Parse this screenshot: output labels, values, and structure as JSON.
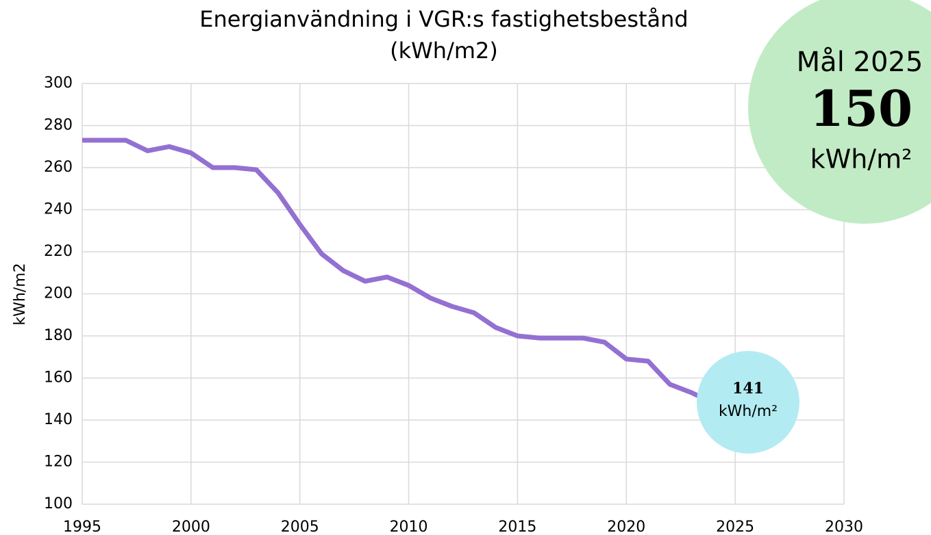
{
  "chart_data": {
    "type": "line",
    "title": [
      "Energianvändning i VGR:s fastighetsbestånd",
      "(kWh/m2)"
    ],
    "y_label": "kWh/m2",
    "x": [
      1995,
      1996,
      1997,
      1998,
      1999,
      2000,
      2001,
      2002,
      2003,
      2004,
      2005,
      2006,
      2007,
      2008,
      2009,
      2010,
      2011,
      2012,
      2013,
      2014,
      2015,
      2016,
      2017,
      2018,
      2019,
      2020,
      2021,
      2022,
      2023,
      2024
    ],
    "series": [
      {
        "name": "Energianvändning",
        "color": "#9370d2",
        "values": [
          273,
          273,
          273,
          268,
          270,
          267,
          260,
          260,
          259,
          248,
          233,
          219,
          211,
          206,
          208,
          204,
          198,
          194,
          191,
          184,
          180,
          179,
          179,
          179,
          177,
          169,
          168,
          157,
          153,
          148
        ]
      }
    ],
    "xlim": [
      1995,
      2030
    ],
    "xticks": [
      1995,
      2000,
      2005,
      2010,
      2015,
      2020,
      2025,
      2030
    ],
    "ylim": [
      100,
      300
    ],
    "yticks": [
      100,
      120,
      140,
      160,
      180,
      200,
      220,
      240,
      260,
      280,
      300
    ],
    "grid": true,
    "annotations": {
      "goal": {
        "lines": [
          "Mål 2025",
          "150",
          "kWh/m²"
        ],
        "color": "#c1ebc4"
      },
      "current": {
        "lines": [
          "141",
          "kWh/m²"
        ],
        "color": "#b3ebf2"
      }
    }
  }
}
